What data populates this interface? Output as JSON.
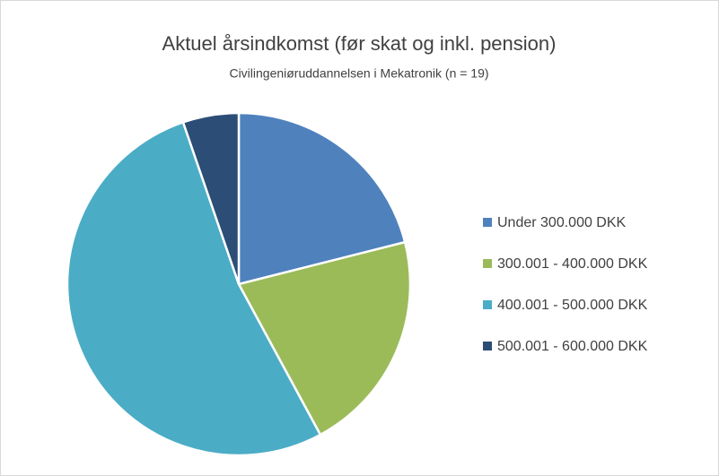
{
  "chart_data": {
    "type": "pie",
    "title": "Aktuel årsindkomst (før skat og inkl. pension)",
    "subtitle": "Civilingeniøruddannelsen i Mekatronik (n = 19)",
    "categories": [
      "Under 300.000 DKK",
      "300.001 - 400.000 DKK",
      "400.001 - 500.000 DKK",
      "500.001 - 600.000 DKK"
    ],
    "values": [
      4,
      4,
      10,
      1
    ],
    "colors": [
      "#4f81bd",
      "#9bbb59",
      "#4bacc6",
      "#2c4d75"
    ],
    "legend": "right"
  }
}
